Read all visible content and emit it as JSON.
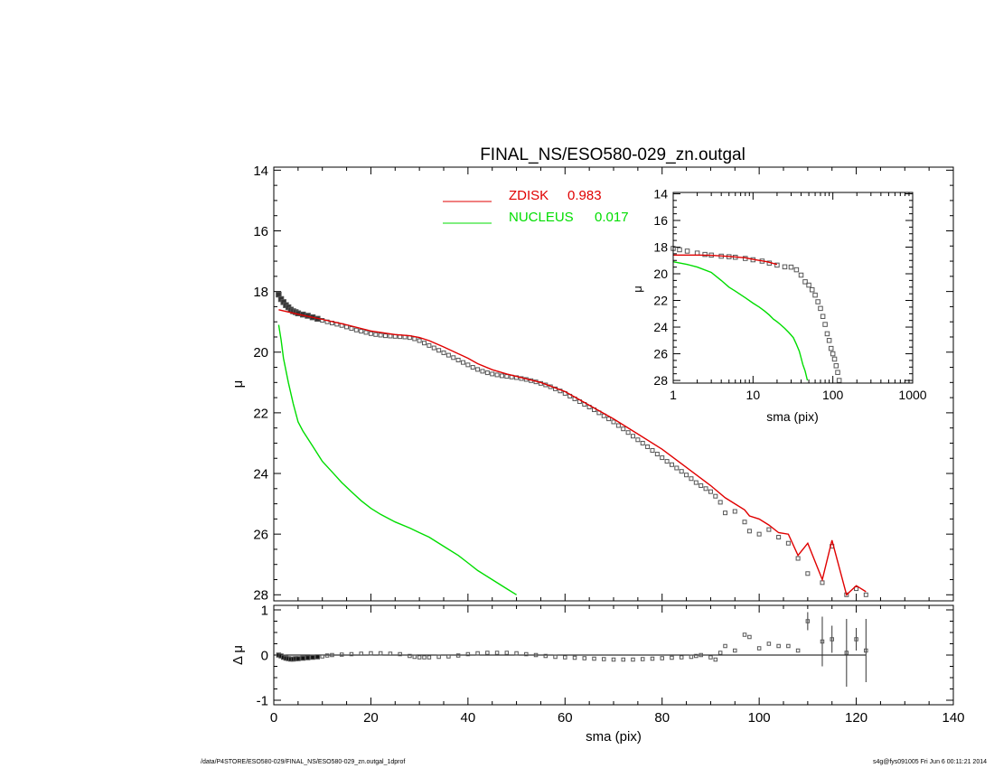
{
  "footer": {
    "left": "/data/P4STORE/ESO580-029/FINAL_NS/ESO580-029_zn.outgal_1dprof",
    "right": "s4g@fys091005  Fri Jun  6 00:11:21 2014"
  },
  "chart_data": [
    {
      "id": "main",
      "type": "line",
      "title": "FINAL_NS/ESO580-029_zn.outgal",
      "xlabel": "",
      "ylabel": "μ",
      "xlim": [
        0,
        140
      ],
      "ylim": [
        28.2,
        13.9
      ],
      "y_inverted": true,
      "xticks": [
        0,
        20,
        40,
        60,
        80,
        100,
        120,
        140
      ],
      "yticks": [
        14,
        16,
        18,
        20,
        22,
        24,
        26,
        28
      ],
      "legend": {
        "placement": "top-center",
        "entries": [
          {
            "label": "ZDISK",
            "value": "0.983",
            "color": "#e00000"
          },
          {
            "label": "NUCLEUS",
            "value": "0.017",
            "color": "#00dd00"
          }
        ]
      },
      "series": [
        {
          "name": "data",
          "style": "markers",
          "color": "#555555",
          "x": [
            1,
            1.5,
            2,
            2.5,
            3,
            3.5,
            4,
            4.5,
            5,
            6,
            7,
            8,
            9,
            10,
            11,
            12,
            13,
            14,
            15,
            16,
            17,
            18,
            19,
            20,
            21,
            22,
            23,
            24,
            25,
            26,
            27,
            28,
            29,
            30,
            31,
            32,
            33,
            34,
            35,
            36,
            37,
            38,
            39,
            40,
            41,
            42,
            43,
            44,
            45,
            46,
            47,
            48,
            49,
            50,
            51,
            52,
            53,
            54,
            55,
            56,
            57,
            58,
            59,
            60,
            61,
            62,
            63,
            64,
            65,
            66,
            67,
            68,
            69,
            70,
            71,
            72,
            73,
            74,
            75,
            76,
            77,
            78,
            79,
            80,
            81,
            82,
            83,
            84,
            85,
            86,
            87,
            88,
            89,
            90,
            91,
            92,
            93,
            95,
            97,
            98,
            100,
            102,
            104,
            106,
            108,
            110,
            113,
            115,
            118,
            120,
            122
          ],
          "y": [
            18.1,
            18.25,
            18.35,
            18.45,
            18.52,
            18.6,
            18.65,
            18.68,
            18.72,
            18.76,
            18.8,
            18.85,
            18.9,
            18.95,
            19.0,
            19.04,
            19.08,
            19.12,
            19.17,
            19.22,
            19.27,
            19.31,
            19.35,
            19.39,
            19.42,
            19.44,
            19.46,
            19.47,
            19.48,
            19.49,
            19.5,
            19.52,
            19.56,
            19.62,
            19.7,
            19.78,
            19.86,
            19.94,
            20.02,
            20.1,
            20.18,
            20.26,
            20.34,
            20.42,
            20.5,
            20.57,
            20.63,
            20.68,
            20.72,
            20.75,
            20.78,
            20.8,
            20.82,
            20.84,
            20.87,
            20.9,
            20.94,
            20.98,
            21.03,
            21.08,
            21.14,
            21.21,
            21.28,
            21.36,
            21.45,
            21.54,
            21.63,
            21.72,
            21.81,
            21.9,
            22.0,
            22.1,
            22.2,
            22.3,
            22.42,
            22.53,
            22.65,
            22.77,
            22.89,
            23.0,
            23.12,
            23.24,
            23.36,
            23.48,
            23.6,
            23.71,
            23.82,
            23.93,
            24.05,
            24.17,
            24.3,
            24.4,
            24.5,
            24.6,
            24.75,
            24.95,
            25.3,
            25.25,
            25.6,
            25.9,
            26.0,
            25.85,
            26.1,
            26.3,
            26.8,
            27.3,
            27.6,
            26.4,
            28.0,
            27.8,
            28.0
          ]
        },
        {
          "name": "ZDISK",
          "style": "line",
          "color": "#e00000",
          "x": [
            1,
            5,
            10,
            15,
            20,
            25,
            28,
            30,
            32,
            35,
            40,
            42,
            45,
            48,
            50,
            55,
            60,
            65,
            70,
            75,
            80,
            85,
            90,
            93,
            95,
            97,
            98,
            100,
            102,
            104,
            106,
            108,
            110,
            113,
            115,
            118,
            120,
            122
          ],
          "y": [
            18.6,
            18.75,
            18.92,
            19.1,
            19.3,
            19.42,
            19.46,
            19.52,
            19.62,
            19.83,
            20.2,
            20.38,
            20.58,
            20.72,
            20.8,
            21.0,
            21.3,
            21.75,
            22.2,
            22.7,
            23.2,
            23.8,
            24.4,
            24.8,
            25.0,
            25.2,
            25.4,
            25.5,
            25.7,
            25.95,
            26.0,
            26.7,
            26.3,
            27.5,
            26.2,
            28.0,
            27.7,
            27.9
          ]
        },
        {
          "name": "NUCLEUS",
          "style": "line",
          "color": "#00dd00",
          "x": [
            1,
            1.5,
            2,
            3,
            4,
            5,
            6,
            8,
            10,
            12,
            14,
            16,
            18,
            20,
            22,
            25,
            28,
            30,
            32,
            35,
            38,
            40,
            42,
            45,
            48,
            50
          ],
          "y": [
            19.1,
            19.6,
            20.2,
            21.0,
            21.7,
            22.3,
            22.6,
            23.1,
            23.6,
            23.95,
            24.3,
            24.6,
            24.9,
            25.15,
            25.35,
            25.6,
            25.8,
            25.95,
            26.1,
            26.4,
            26.7,
            26.95,
            27.2,
            27.5,
            27.8,
            28.0
          ]
        }
      ]
    },
    {
      "id": "residual",
      "type": "scatter",
      "xlabel": "sma (pix)",
      "ylabel": "Δ μ",
      "xlim": [
        0,
        140
      ],
      "ylim": [
        -1.1,
        1.1
      ],
      "xticks": [
        0,
        20,
        40,
        60,
        80,
        100,
        120,
        140
      ],
      "yticks": [
        -1,
        0,
        1
      ],
      "series": [
        {
          "name": "residual",
          "color": "#555555",
          "x": [
            1,
            1.5,
            2,
            2.5,
            3,
            3.5,
            4,
            4.5,
            5,
            6,
            7,
            8,
            9,
            10,
            11,
            12,
            14,
            16,
            18,
            20,
            22,
            24,
            26,
            28,
            29,
            30,
            31,
            32,
            34,
            36,
            38,
            40,
            42,
            44,
            46,
            48,
            50,
            52,
            54,
            56,
            58,
            60,
            62,
            64,
            66,
            68,
            70,
            72,
            74,
            76,
            78,
            80,
            82,
            84,
            86,
            87,
            88,
            90,
            91,
            92,
            93,
            95,
            97,
            98,
            100,
            102,
            104,
            106,
            108,
            110,
            113,
            115,
            118,
            120,
            122
          ],
          "y": [
            0.0,
            -0.02,
            -0.05,
            -0.07,
            -0.08,
            -0.09,
            -0.09,
            -0.08,
            -0.08,
            -0.07,
            -0.06,
            -0.05,
            -0.04,
            -0.03,
            -0.01,
            0.0,
            0.01,
            0.02,
            0.03,
            0.04,
            0.04,
            0.03,
            0.02,
            -0.02,
            -0.04,
            -0.05,
            -0.05,
            -0.05,
            -0.04,
            -0.03,
            -0.01,
            0.02,
            0.04,
            0.05,
            0.05,
            0.05,
            0.04,
            0.02,
            0.0,
            -0.02,
            -0.04,
            -0.05,
            -0.06,
            -0.07,
            -0.08,
            -0.09,
            -0.1,
            -0.1,
            -0.1,
            -0.09,
            -0.08,
            -0.07,
            -0.06,
            -0.05,
            -0.04,
            -0.02,
            0.0,
            -0.05,
            -0.1,
            0.05,
            0.2,
            0.1,
            0.45,
            0.4,
            0.15,
            0.25,
            0.2,
            0.2,
            0.1,
            0.75,
            0.3,
            0.35,
            0.05,
            0.35,
            0.1
          ],
          "yerr": {
            "110": 0.2,
            "113": 0.55,
            "115": 0.3,
            "118": 0.75,
            "120": 0.25,
            "122": 0.7
          }
        }
      ]
    },
    {
      "id": "inset",
      "type": "line",
      "xlabel": "sma (pix)",
      "ylabel": "μ",
      "xscale": "log",
      "xlim": [
        1,
        1000
      ],
      "ylim": [
        28.2,
        13.9
      ],
      "y_inverted": true,
      "xticks": [
        1,
        10,
        100,
        1000
      ],
      "yticks": [
        14,
        16,
        18,
        20,
        22,
        24,
        26,
        28
      ],
      "series": [
        {
          "name": "data",
          "style": "markers",
          "color": "#555555",
          "x": [
            1,
            1.2,
            1.5,
            2,
            2.5,
            3,
            4,
            5,
            6,
            8,
            10,
            13,
            16,
            20,
            25,
            30,
            35,
            40,
            45,
            50,
            55,
            60,
            65,
            70,
            75,
            80,
            85,
            90,
            95,
            100,
            105,
            110,
            115,
            120
          ],
          "y": [
            18.1,
            18.2,
            18.3,
            18.45,
            18.55,
            18.6,
            18.68,
            18.72,
            18.76,
            18.85,
            18.95,
            19.05,
            19.2,
            19.35,
            19.48,
            19.5,
            19.7,
            20.1,
            20.6,
            20.85,
            21.2,
            21.6,
            22.1,
            22.6,
            23.2,
            23.8,
            24.5,
            25.0,
            25.6,
            26.0,
            26.4,
            26.9,
            27.4,
            28.0
          ]
        },
        {
          "name": "ZDISK",
          "style": "line",
          "color": "#e00000",
          "x": [
            1,
            2,
            3,
            5,
            8,
            10,
            15,
            20
          ],
          "y": [
            18.6,
            18.6,
            18.62,
            18.7,
            18.8,
            18.92,
            19.1,
            19.3
          ]
        },
        {
          "name": "NUCLEUS",
          "style": "line",
          "color": "#00dd00",
          "x": [
            1,
            1.5,
            2,
            3,
            4,
            5,
            6,
            8,
            10,
            12,
            14,
            16,
            18,
            20,
            22,
            25,
            28,
            30,
            32,
            35,
            38,
            40,
            42,
            45,
            48
          ],
          "y": [
            19.1,
            19.3,
            19.5,
            19.9,
            20.5,
            21.0,
            21.3,
            21.8,
            22.2,
            22.5,
            22.8,
            23.1,
            23.4,
            23.6,
            23.8,
            24.1,
            24.4,
            24.6,
            24.8,
            25.3,
            25.8,
            26.3,
            26.8,
            27.3,
            28.0
          ]
        }
      ]
    }
  ]
}
